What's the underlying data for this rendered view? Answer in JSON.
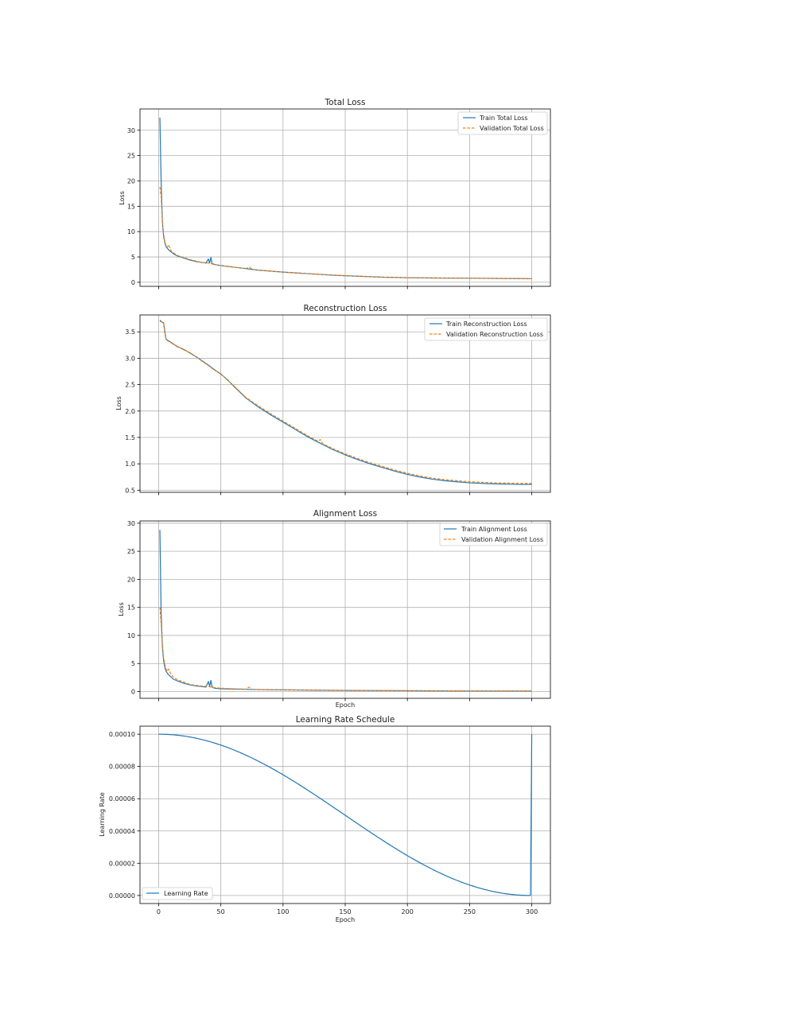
{
  "chart_data": [
    {
      "type": "line",
      "title": "Total Loss",
      "xlabel": "",
      "ylabel": "Loss",
      "xlim": [
        -15,
        315
      ],
      "ylim": [
        -0.8,
        34.2
      ],
      "xticks": [
        0,
        50,
        100,
        150,
        200,
        250,
        300
      ],
      "show_xtick_labels": false,
      "yticks": [
        0,
        5,
        10,
        15,
        20,
        25,
        30
      ],
      "ytick_labels": [
        "0",
        "5",
        "10",
        "15",
        "20",
        "25",
        "30"
      ],
      "grid": true,
      "legend_position": "top-right",
      "series": [
        {
          "name": "Train Total Loss",
          "color": "#1f77b4",
          "dash": "solid",
          "x": [
            1,
            2,
            3,
            4,
            5,
            6,
            8,
            10,
            12,
            15,
            20,
            25,
            30,
            35,
            38,
            40,
            41,
            42,
            43,
            44,
            45,
            50,
            60,
            70,
            80,
            90,
            100,
            120,
            140,
            160,
            180,
            200,
            220,
            250,
            280,
            300
          ],
          "y": [
            32.5,
            20,
            12,
            9,
            7.8,
            7,
            6.4,
            6,
            5.6,
            5.2,
            4.8,
            4.4,
            4.1,
            3.9,
            3.8,
            4.6,
            3.8,
            4.9,
            3.7,
            3.6,
            3.5,
            3.3,
            3.0,
            2.7,
            2.4,
            2.2,
            2.0,
            1.7,
            1.4,
            1.2,
            1.0,
            0.9,
            0.85,
            0.8,
            0.75,
            0.7
          ]
        },
        {
          "name": "Validation Total Loss",
          "color": "#ff7f0e",
          "dash": "dashed",
          "x": [
            1,
            2,
            3,
            4,
            5,
            6,
            7,
            8,
            10,
            12,
            15,
            20,
            25,
            30,
            35,
            40,
            45,
            50,
            60,
            70,
            73,
            75,
            80,
            90,
            100,
            120,
            140,
            160,
            180,
            200,
            220,
            250,
            280,
            300
          ],
          "y": [
            18.8,
            17,
            12,
            9.5,
            8,
            7.2,
            6.8,
            7.4,
            6.2,
            5.8,
            5.3,
            4.9,
            4.5,
            4.2,
            3.9,
            3.8,
            3.5,
            3.3,
            3.0,
            2.7,
            3.0,
            2.6,
            2.4,
            2.2,
            2.0,
            1.7,
            1.4,
            1.2,
            1.0,
            0.9,
            0.85,
            0.8,
            0.75,
            0.72
          ]
        }
      ]
    },
    {
      "type": "line",
      "title": "Reconstruction Loss",
      "xlabel": "",
      "ylabel": "Loss",
      "xlim": [
        -15,
        315
      ],
      "ylim": [
        0.46,
        3.82
      ],
      "xticks": [
        0,
        50,
        100,
        150,
        200,
        250,
        300
      ],
      "show_xtick_labels": false,
      "yticks": [
        0.5,
        1.0,
        1.5,
        2.0,
        2.5,
        3.0,
        3.5
      ],
      "ytick_labels": [
        "0.5",
        "1.0",
        "1.5",
        "2.0",
        "2.5",
        "3.0",
        "3.5"
      ],
      "grid": true,
      "legend_position": "top-right",
      "series": [
        {
          "name": "Train Reconstruction Loss",
          "color": "#1f77b4",
          "dash": "solid",
          "x": [
            1,
            2,
            3,
            4,
            5,
            6,
            8,
            10,
            15,
            20,
            25,
            30,
            35,
            40,
            45,
            50,
            55,
            60,
            70,
            80,
            90,
            100,
            110,
            120,
            130,
            140,
            150,
            160,
            170,
            180,
            190,
            200,
            210,
            220,
            230,
            240,
            250,
            260,
            270,
            280,
            290,
            300
          ],
          "y": [
            3.72,
            3.7,
            3.68,
            3.67,
            3.5,
            3.36,
            3.33,
            3.3,
            3.22,
            3.17,
            3.1,
            3.03,
            2.95,
            2.87,
            2.78,
            2.7,
            2.6,
            2.48,
            2.25,
            2.08,
            1.93,
            1.79,
            1.65,
            1.51,
            1.39,
            1.27,
            1.17,
            1.08,
            1.0,
            0.93,
            0.86,
            0.8,
            0.75,
            0.71,
            0.68,
            0.66,
            0.64,
            0.63,
            0.62,
            0.615,
            0.61,
            0.61
          ]
        },
        {
          "name": "Validation Reconstruction Loss",
          "color": "#ff7f0e",
          "dash": "dashed",
          "x": [
            1,
            2,
            3,
            4,
            5,
            6,
            8,
            10,
            15,
            20,
            25,
            30,
            35,
            40,
            45,
            50,
            55,
            60,
            70,
            80,
            90,
            100,
            110,
            120,
            128,
            130,
            132,
            140,
            150,
            160,
            170,
            180,
            190,
            200,
            210,
            220,
            230,
            240,
            250,
            260,
            270,
            280,
            290,
            300
          ],
          "y": [
            3.7,
            3.69,
            3.68,
            3.66,
            3.48,
            3.35,
            3.32,
            3.29,
            3.23,
            3.16,
            3.11,
            3.03,
            2.94,
            2.86,
            2.77,
            2.71,
            2.59,
            2.49,
            2.26,
            2.1,
            1.95,
            1.81,
            1.67,
            1.53,
            1.43,
            1.46,
            1.38,
            1.29,
            1.19,
            1.1,
            1.02,
            0.95,
            0.88,
            0.82,
            0.77,
            0.73,
            0.7,
            0.68,
            0.66,
            0.65,
            0.64,
            0.635,
            0.63,
            0.63
          ]
        }
      ]
    },
    {
      "type": "line",
      "title": "Alignment Loss",
      "xlabel": "Epoch",
      "ylabel": "Loss",
      "xlim": [
        -15,
        315
      ],
      "ylim": [
        -1.2,
        30.4
      ],
      "xticks": [
        0,
        50,
        100,
        150,
        200,
        250,
        300
      ],
      "show_xtick_labels": false,
      "yticks": [
        0,
        5,
        10,
        15,
        20,
        25,
        30
      ],
      "ytick_labels": [
        "0",
        "5",
        "10",
        "15",
        "20",
        "25",
        "30"
      ],
      "grid": true,
      "legend_position": "top-right",
      "series": [
        {
          "name": "Train Alignment Loss",
          "color": "#1f77b4",
          "dash": "solid",
          "x": [
            1,
            2,
            3,
            4,
            5,
            6,
            8,
            10,
            12,
            15,
            20,
            25,
            30,
            35,
            38,
            40,
            41,
            42,
            43,
            44,
            45,
            50,
            60,
            70,
            80,
            100,
            150,
            200,
            250,
            300
          ],
          "y": [
            28.8,
            14,
            8,
            5.5,
            4.3,
            3.6,
            3.0,
            2.6,
            2.2,
            1.9,
            1.5,
            1.2,
            1.0,
            0.9,
            0.8,
            1.8,
            0.9,
            2.0,
            0.8,
            0.7,
            0.6,
            0.5,
            0.45,
            0.4,
            0.35,
            0.3,
            0.2,
            0.15,
            0.1,
            0.1
          ]
        },
        {
          "name": "Validation Alignment Loss",
          "color": "#ff7f0e",
          "dash": "dashed",
          "x": [
            1,
            2,
            3,
            4,
            5,
            6,
            7,
            8,
            10,
            12,
            15,
            20,
            25,
            30,
            35,
            40,
            45,
            50,
            60,
            70,
            73,
            75,
            80,
            100,
            150,
            200,
            250,
            300
          ],
          "y": [
            15,
            12,
            8.5,
            6,
            4.8,
            4.0,
            3.6,
            4.0,
            3.0,
            2.6,
            2.1,
            1.7,
            1.3,
            1.1,
            1.0,
            0.9,
            0.7,
            0.6,
            0.5,
            0.45,
            0.8,
            0.4,
            0.38,
            0.32,
            0.22,
            0.17,
            0.12,
            0.12
          ]
        }
      ]
    },
    {
      "type": "line",
      "title": "Learning Rate Schedule",
      "xlabel": "Epoch",
      "ylabel": "Learning Rate",
      "xlim": [
        -15,
        315
      ],
      "ylim": [
        -5e-06,
        0.000105
      ],
      "xticks": [
        0,
        50,
        100,
        150,
        200,
        250,
        300
      ],
      "show_xtick_labels": true,
      "xtick_labels": [
        "0",
        "50",
        "100",
        "150",
        "200",
        "250",
        "300"
      ],
      "yticks": [
        0,
        2e-05,
        4e-05,
        6e-05,
        8e-05,
        0.0001
      ],
      "ytick_labels": [
        "0.00000",
        "0.00002",
        "0.00004",
        "0.00006",
        "0.00008",
        "0.00010"
      ],
      "grid": true,
      "legend_position": "bottom-left",
      "series": [
        {
          "name": "Learning Rate",
          "color": "#1f77b4",
          "dash": "solid",
          "schedule": "cosine",
          "lr_max": 0.0001,
          "period_epochs": 299,
          "start_epoch": 0,
          "restart_epoch": 300
        }
      ]
    }
  ]
}
